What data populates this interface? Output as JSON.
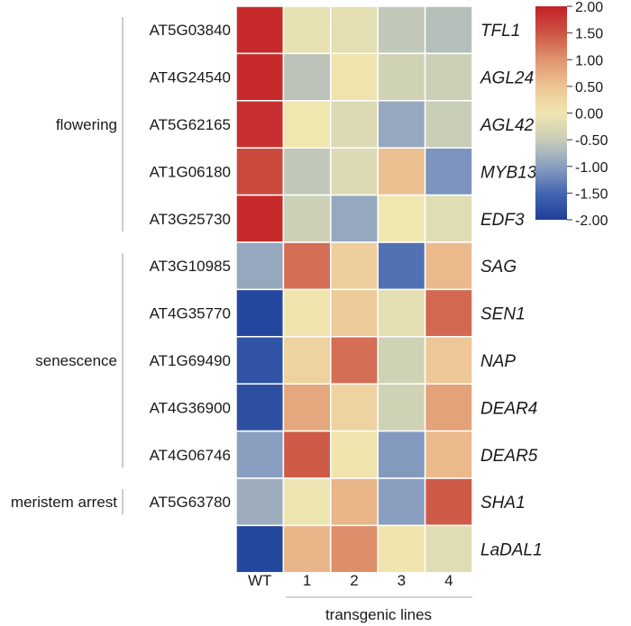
{
  "chart_data": {
    "type": "heatmap",
    "columns": [
      "WT",
      "1",
      "2",
      "3",
      "4"
    ],
    "xlabel": "transgenic lines",
    "rows": [
      {
        "id": "AT5G03840",
        "gene": "TFL1",
        "values": [
          1.9,
          -0.1,
          -0.15,
          -0.55,
          -0.65
        ]
      },
      {
        "id": "AT4G24540",
        "gene": "AGL24",
        "values": [
          1.9,
          -0.6,
          0.05,
          -0.4,
          -0.45
        ]
      },
      {
        "id": "AT5G62165",
        "gene": "AGL42",
        "values": [
          1.85,
          0.0,
          -0.25,
          -0.9,
          -0.5
        ]
      },
      {
        "id": "AT1G06180",
        "gene": "MYB13",
        "values": [
          1.6,
          -0.55,
          -0.25,
          0.55,
          -1.1
        ]
      },
      {
        "id": "AT3G25730",
        "gene": "EDF3",
        "values": [
          1.9,
          -0.45,
          -0.9,
          0.0,
          -0.2
        ]
      },
      {
        "id": "AT3G10985",
        "gene": "SAG",
        "values": [
          -0.9,
          1.3,
          0.35,
          -1.4,
          0.6
        ]
      },
      {
        "id": "AT4G35770",
        "gene": "SEN1",
        "values": [
          -1.9,
          0.05,
          0.4,
          -0.15,
          1.35
        ]
      },
      {
        "id": "AT1G69490",
        "gene": "NAP",
        "values": [
          -1.75,
          0.3,
          1.3,
          -0.4,
          0.45
        ]
      },
      {
        "id": "AT4G36900",
        "gene": "DEAR4",
        "values": [
          -1.8,
          0.8,
          0.3,
          -0.4,
          0.85
        ]
      },
      {
        "id": "AT4G06746",
        "gene": "DEAR5",
        "values": [
          -1.0,
          1.45,
          0.05,
          -1.05,
          0.6
        ]
      },
      {
        "id": "AT5G63780",
        "gene": "SHA1",
        "values": [
          -0.85,
          -0.05,
          0.65,
          -1.0,
          1.45
        ]
      },
      {
        "id": "",
        "gene": "LaDAL1",
        "values": [
          -1.9,
          0.65,
          1.05,
          0.05,
          -0.2
        ]
      }
    ],
    "groups": [
      {
        "label": "flowering",
        "rows": [
          0,
          4
        ]
      },
      {
        "label": "senescence",
        "rows": [
          5,
          9
        ]
      },
      {
        "label": "meristem arrest",
        "rows": [
          10,
          10
        ]
      }
    ],
    "colorbar": {
      "min": -2.0,
      "max": 2.0,
      "ticks": [
        "2.00",
        "1.50",
        "1.00",
        "0.50",
        "0.00",
        "-0.50",
        "-1.00",
        "-1.50",
        "-2.00"
      ],
      "colors": [
        "#1c3f99",
        "#4466b0",
        "#8a9fc0",
        "#c8cdb8",
        "#f0e6b0",
        "#edc494",
        "#e0946e",
        "#cc5544",
        "#c41f25"
      ]
    }
  }
}
